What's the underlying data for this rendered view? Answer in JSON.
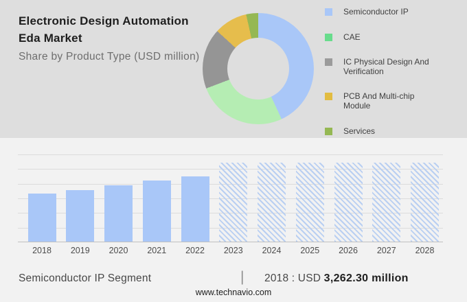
{
  "header": {
    "title_line1": "Electronic Design Automation",
    "title_line2": "Eda Market",
    "subtitle": "Share by Product Type (USD million)"
  },
  "legend": {
    "items": [
      {
        "label": "Semiconductor IP",
        "swatch_color": "#a9c7f8"
      },
      {
        "label": "CAE",
        "swatch_color": "#68dc8c"
      },
      {
        "label": "IC Physical Design And Verification",
        "swatch_color": "#9b9b9b"
      },
      {
        "label": "PCB And Multi-chip Module",
        "swatch_color": "#e2bc41"
      },
      {
        "label": "Services",
        "swatch_color": "#95b853"
      }
    ]
  },
  "chart_data": [
    {
      "type": "pie",
      "subtype": "donut",
      "title": "Share by Product Type (USD million)",
      "labels": [
        "Semiconductor IP",
        "CAE",
        "IC Physical Design And Verification",
        "PCB And Multi-chip Module",
        "Services"
      ],
      "values_share_pct": [
        43.1,
        26.1,
        17.6,
        9.7,
        3.5
      ],
      "colors": [
        "#a9c7f8",
        "#b5edb3",
        "#959595",
        "#e6bd4c",
        "#95b853"
      ],
      "legend_position": "right",
      "start_angle_deg": 0
    },
    {
      "type": "bar",
      "categories": [
        "2018",
        "2019",
        "2020",
        "2021",
        "2022",
        "2023",
        "2024",
        "2025",
        "2026",
        "2027",
        "2028"
      ],
      "relative_heights": [
        0.547,
        0.586,
        0.64,
        0.693,
        0.745,
        0.902,
        0.902,
        0.902,
        0.902,
        0.902,
        0.902
      ],
      "values_est_usd_million": [
        3262.3,
        3495,
        3815,
        4130,
        4445,
        5380,
        5380,
        5380,
        5380,
        5380,
        5380
      ],
      "bar_styles": [
        "solid",
        "solid",
        "solid",
        "solid",
        "solid",
        "hatched",
        "hatched",
        "hatched",
        "hatched",
        "hatched",
        "hatched"
      ],
      "labeled_value": {
        "year": "2018",
        "value": "3,262.30",
        "unit": "USD million"
      },
      "gridline_count": 7,
      "grid": true,
      "y_axis_labels": false
    }
  ],
  "footer": {
    "segment_label": "Semiconductor IP Segment",
    "separator": "|",
    "value_prefix": "2018 : USD",
    "value_bold": "3,262.30 million",
    "website": "www.technavio.com"
  },
  "colors": {
    "top_background": "#dedede",
    "bottom_background": "#f2f2f2",
    "bar_solid": "#a9c7f8",
    "hatch_stripe": "#b9cff2",
    "gridline": "#dcdcdc",
    "axis_line": "#c0c0c0",
    "title_text": "#1e1e1e",
    "subtitle_text": "#6e6e6e"
  }
}
